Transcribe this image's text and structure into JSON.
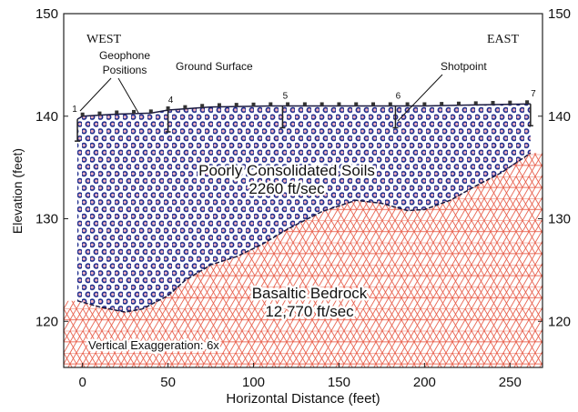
{
  "chart_data": {
    "type": "cross-section",
    "xlabel": "Horizontal Distance (feet)",
    "ylabel": "Elevation (feet)",
    "xlim": [
      -11,
      269
    ],
    "ylim": [
      115.5,
      150
    ],
    "y2lim": [
      115.5,
      150
    ],
    "xticks": [
      0,
      50,
      100,
      150,
      200,
      250
    ],
    "yticks": [
      120,
      130,
      140,
      150
    ],
    "y2ticks": [
      120,
      130,
      140,
      150
    ],
    "west_label": "WEST",
    "east_label": "EAST",
    "geophone_label": [
      "Geophone",
      "Positions"
    ],
    "shotpoint_label": "Shotpoint",
    "exaggeration_label": "Vertical Exaggeration: 6x",
    "layers": [
      {
        "name": "Poorly Consolidated Soils",
        "velocity": "2260 ft/sec",
        "color": "#1c2c8c"
      },
      {
        "name": "Basaltic Bedrock",
        "velocity": "12,770 ft/sec",
        "color": "#e8604c"
      }
    ],
    "surfaces": [
      {
        "name": "Ground Surface",
        "color": "#1a1a40",
        "x": [
          -3,
          0,
          20,
          40,
          50,
          75,
          110,
          150,
          200,
          262
        ],
        "y": [
          139.7,
          140,
          140.2,
          140.3,
          140.6,
          140.9,
          141,
          141,
          141,
          141.2
        ]
      },
      {
        "color": "#1a1a40",
        "x": [
          -3,
          10,
          25,
          35,
          50,
          60,
          75,
          90,
          105,
          120,
          140,
          160,
          175,
          190,
          200,
          215,
          230,
          245,
          262
        ],
        "y": [
          122,
          121.4,
          120.9,
          121.2,
          122.5,
          124,
          125.5,
          126.3,
          127.5,
          129,
          130.7,
          131.8,
          131.5,
          130.8,
          130.9,
          131.8,
          133.2,
          134.5,
          136.4
        ]
      }
    ],
    "shotpoints": [
      {
        "label": "1",
        "x": -3
      },
      {
        "label": "4",
        "x": 50
      },
      {
        "label": "5",
        "x": 117
      },
      {
        "label": "6",
        "x": 183
      },
      {
        "label": "7",
        "x": 262
      }
    ],
    "geophones": [
      0,
      10,
      20,
      30,
      40,
      50,
      60,
      70,
      80,
      90,
      100,
      110,
      120,
      130,
      140,
      150,
      160,
      170,
      180,
      190,
      200,
      210,
      220,
      230,
      240,
      250,
      260
    ]
  }
}
